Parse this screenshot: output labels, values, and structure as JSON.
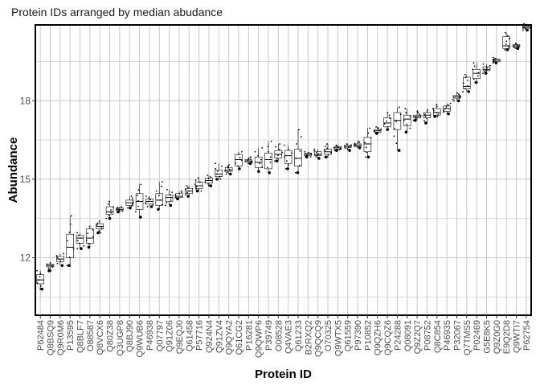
{
  "chart_data": {
    "type": "box",
    "title": "Protein IDs arranged by median abudance",
    "xlabel": "Protein ID",
    "ylabel": "Abundance",
    "ylim": [
      9.8,
      20.9
    ],
    "yticks": [
      12,
      15,
      18
    ],
    "ytick_labels": [
      "12",
      "15",
      "18"
    ],
    "grid": true,
    "legend": "none",
    "colors": {
      "box_fill": "#ffffff",
      "box_line": "#000000",
      "grid": "#c8c8c8",
      "panel_border": "#000000",
      "point": "#000000"
    },
    "categories": [
      "P62484",
      "Q8BSQ9",
      "Q9R0M6",
      "P13595",
      "Q8BLF7",
      "O88587",
      "Q8VCX6",
      "Q80Z38",
      "Q3UGP8",
      "Q8BJ90",
      "Q9WUB6",
      "P46938",
      "Q07797",
      "Q91Z06",
      "Q9EQJ0",
      "Q61458",
      "P57716",
      "Q924N4",
      "Q91ZV4",
      "Q9QYA2",
      "Q61CG2",
      "P16281",
      "Q9QWP6",
      "P39749",
      "O08528",
      "Q4VAE3",
      "Q61233",
      "B2RXQ2",
      "Q9QCQ9",
      "O70325",
      "Q9WTX5",
      "Q61559",
      "P97390",
      "P10852",
      "Q9QZH6",
      "Q9CQZ6",
      "P24288",
      "Q08091",
      "Q9Z2Q7",
      "P08752",
      "Q8C854",
      "P46935",
      "P32067",
      "Q7TMS5",
      "P02469",
      "G5E8K5",
      "Q9Z0G0",
      "E9Q2D8",
      "Q9WTI7",
      "P62754"
    ],
    "series": [
      {
        "stats": [
          {
            "min": 10.8,
            "q1": 11.0,
            "median": 11.15,
            "q3": 11.35,
            "max": 11.5
          },
          {
            "min": 11.5,
            "q1": 11.65,
            "median": 11.7,
            "q3": 11.75,
            "max": 11.8
          },
          {
            "min": 11.7,
            "q1": 11.85,
            "median": 11.95,
            "q3": 12.05,
            "max": 12.15
          },
          {
            "min": 11.7,
            "q1": 12.0,
            "median": 12.4,
            "q3": 12.9,
            "max": 13.6
          },
          {
            "min": 12.35,
            "q1": 12.55,
            "median": 12.75,
            "q3": 12.85,
            "max": 12.95
          },
          {
            "min": 12.4,
            "q1": 12.55,
            "median": 12.75,
            "q3": 13.1,
            "max": 13.2
          },
          {
            "min": 12.95,
            "q1": 13.1,
            "median": 13.2,
            "q3": 13.3,
            "max": 13.4
          },
          {
            "min": 13.5,
            "q1": 13.65,
            "median": 13.75,
            "q3": 13.95,
            "max": 14.15
          },
          {
            "min": 13.75,
            "q1": 13.8,
            "median": 13.85,
            "q3": 13.9,
            "max": 13.95
          },
          {
            "min": 13.9,
            "q1": 14.0,
            "median": 14.1,
            "q3": 14.2,
            "max": 14.35
          },
          {
            "min": 13.55,
            "q1": 13.85,
            "median": 14.15,
            "q3": 14.45,
            "max": 14.8
          },
          {
            "min": 13.95,
            "q1": 14.05,
            "median": 14.15,
            "q3": 14.25,
            "max": 14.35
          },
          {
            "min": 13.85,
            "q1": 14.0,
            "median": 14.2,
            "q3": 14.45,
            "max": 14.9
          },
          {
            "min": 14.0,
            "q1": 14.15,
            "median": 14.3,
            "q3": 14.4,
            "max": 14.6
          },
          {
            "min": 14.25,
            "q1": 14.3,
            "median": 14.35,
            "q3": 14.45,
            "max": 14.55
          },
          {
            "min": 14.35,
            "q1": 14.45,
            "median": 14.55,
            "q3": 14.65,
            "max": 14.75
          },
          {
            "min": 14.55,
            "q1": 14.65,
            "median": 14.75,
            "q3": 14.9,
            "max": 15.05
          },
          {
            "min": 14.75,
            "q1": 14.85,
            "median": 14.95,
            "q3": 15.05,
            "max": 15.15
          },
          {
            "min": 15.0,
            "q1": 15.1,
            "median": 15.2,
            "q3": 15.35,
            "max": 15.6
          },
          {
            "min": 15.2,
            "q1": 15.3,
            "median": 15.35,
            "q3": 15.45,
            "max": 15.55
          },
          {
            "min": 15.4,
            "q1": 15.5,
            "median": 15.75,
            "q3": 15.95,
            "max": 16.05
          },
          {
            "min": 15.6,
            "q1": 15.65,
            "median": 15.7,
            "q3": 15.75,
            "max": 15.85
          },
          {
            "min": 15.3,
            "q1": 15.45,
            "median": 15.65,
            "q3": 15.85,
            "max": 16.2
          },
          {
            "min": 15.25,
            "q1": 15.4,
            "median": 15.75,
            "q3": 16.0,
            "max": 16.45
          },
          {
            "min": 15.7,
            "q1": 15.8,
            "median": 15.95,
            "q3": 16.1,
            "max": 16.35
          },
          {
            "min": 15.4,
            "q1": 15.6,
            "median": 15.9,
            "q3": 16.1,
            "max": 16.3
          },
          {
            "min": 15.25,
            "q1": 15.5,
            "median": 15.8,
            "q3": 16.15,
            "max": 16.9
          },
          {
            "min": 15.85,
            "q1": 15.9,
            "median": 15.95,
            "q3": 16.0,
            "max": 16.05
          },
          {
            "min": 15.8,
            "q1": 15.9,
            "median": 15.95,
            "q3": 16.05,
            "max": 16.15
          },
          {
            "min": 15.85,
            "q1": 15.95,
            "median": 16.05,
            "q3": 16.15,
            "max": 16.35
          },
          {
            "min": 16.1,
            "q1": 16.15,
            "median": 16.2,
            "q3": 16.25,
            "max": 16.3
          },
          {
            "min": 16.1,
            "q1": 16.2,
            "median": 16.25,
            "q3": 16.3,
            "max": 16.35
          },
          {
            "min": 16.2,
            "q1": 16.25,
            "median": 16.3,
            "q3": 16.35,
            "max": 16.45
          },
          {
            "min": 15.85,
            "q1": 16.05,
            "median": 16.35,
            "q3": 16.6,
            "max": 16.95
          },
          {
            "min": 16.75,
            "q1": 16.8,
            "median": 16.85,
            "q3": 16.9,
            "max": 17.0
          },
          {
            "min": 16.9,
            "q1": 17.0,
            "median": 17.15,
            "q3": 17.35,
            "max": 17.55
          },
          {
            "min": 16.1,
            "q1": 16.9,
            "median": 17.25,
            "q3": 17.55,
            "max": 17.75
          },
          {
            "min": 16.8,
            "q1": 17.05,
            "median": 17.3,
            "q3": 17.45,
            "max": 17.7
          },
          {
            "min": 17.25,
            "q1": 17.35,
            "median": 17.4,
            "q3": 17.45,
            "max": 17.6
          },
          {
            "min": 17.15,
            "q1": 17.35,
            "median": 17.45,
            "q3": 17.55,
            "max": 17.65
          },
          {
            "min": 17.4,
            "q1": 17.45,
            "median": 17.55,
            "q3": 17.7,
            "max": 17.85
          },
          {
            "min": 17.5,
            "q1": 17.6,
            "median": 17.7,
            "q3": 17.8,
            "max": 17.9
          },
          {
            "min": 18.0,
            "q1": 18.1,
            "median": 18.15,
            "q3": 18.2,
            "max": 18.3
          },
          {
            "min": 18.35,
            "q1": 18.45,
            "median": 18.55,
            "q3": 18.9,
            "max": 19.0
          },
          {
            "min": 18.7,
            "q1": 18.85,
            "median": 19.05,
            "q3": 19.2,
            "max": 19.45
          },
          {
            "min": 19.05,
            "q1": 19.15,
            "median": 19.2,
            "q3": 19.3,
            "max": 19.4
          },
          {
            "min": 19.45,
            "q1": 19.5,
            "median": 19.55,
            "q3": 19.6,
            "max": 19.65
          },
          {
            "min": 19.95,
            "q1": 20.0,
            "median": 20.1,
            "q3": 20.45,
            "max": 20.6
          },
          {
            "min": 20.0,
            "q1": 20.05,
            "median": 20.1,
            "q3": 20.15,
            "max": 20.2
          },
          {
            "min": 20.7,
            "q1": 20.75,
            "median": 20.8,
            "q3": 20.85,
            "max": 20.95
          }
        ]
      }
    ]
  }
}
